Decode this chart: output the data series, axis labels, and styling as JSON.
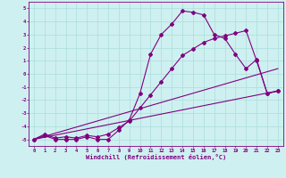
{
  "xlabel": "Windchill (Refroidissement éolien,°C)",
  "background_color": "#cff0f0",
  "line_color": "#800080",
  "grid_color": "#aadddd",
  "xlim": [
    -0.5,
    23.5
  ],
  "ylim": [
    -5.5,
    5.5
  ],
  "xticks": [
    0,
    1,
    2,
    3,
    4,
    5,
    6,
    7,
    8,
    9,
    10,
    11,
    12,
    13,
    14,
    15,
    16,
    17,
    18,
    19,
    20,
    21,
    22,
    23
  ],
  "yticks": [
    -5,
    -4,
    -3,
    -2,
    -1,
    0,
    1,
    2,
    3,
    4,
    5
  ],
  "lines": [
    {
      "x": [
        0,
        1,
        2,
        3,
        4,
        5,
        6,
        7,
        8,
        9,
        10,
        11,
        12,
        13,
        14,
        15,
        16,
        17,
        18,
        19,
        20,
        21,
        22,
        23
      ],
      "y": [
        -5,
        -4.7,
        -5,
        -5,
        -5,
        -4.8,
        -5,
        -5,
        -4.3,
        -3.5,
        -1.5,
        1.5,
        3.0,
        3.8,
        4.8,
        4.7,
        4.5,
        3.0,
        2.7,
        1.5,
        0.4,
        1.1,
        -1.5,
        -1.3
      ]
    },
    {
      "x": [
        0,
        1,
        2,
        3,
        4,
        5,
        6,
        7,
        8,
        9,
        10,
        11,
        12,
        13,
        14,
        15,
        16,
        17,
        18,
        19,
        20,
        21,
        22,
        23
      ],
      "y": [
        -5,
        -4.6,
        -4.9,
        -4.8,
        -4.9,
        -4.7,
        -4.8,
        -4.6,
        -4.1,
        -3.6,
        -2.6,
        -1.6,
        -0.6,
        0.4,
        1.4,
        1.9,
        2.4,
        2.7,
        2.9,
        3.1,
        3.3,
        1.0,
        -1.5,
        -1.3
      ]
    },
    {
      "x": [
        0,
        23
      ],
      "y": [
        -5,
        -1.3
      ]
    },
    {
      "x": [
        0,
        23
      ],
      "y": [
        -5,
        0.4
      ]
    }
  ]
}
